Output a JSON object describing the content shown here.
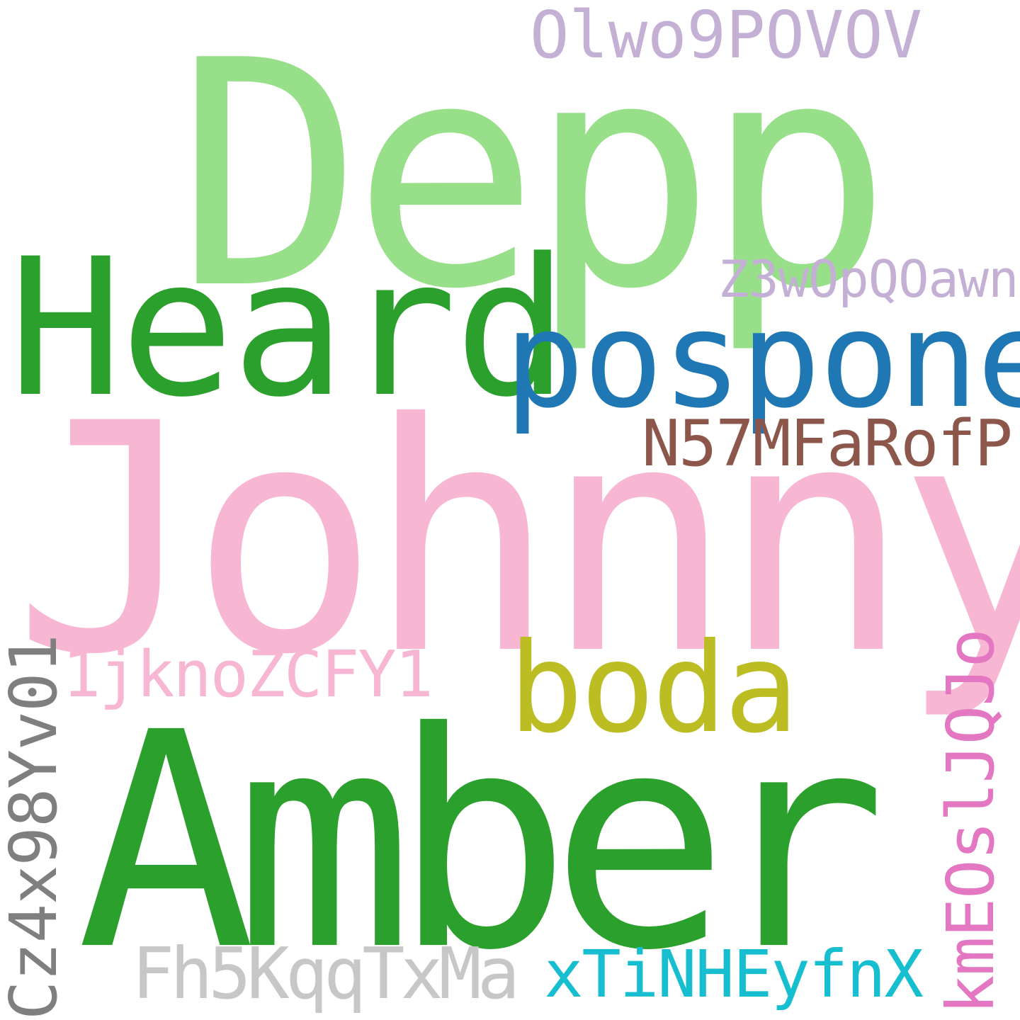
{
  "words": {
    "depp": {
      "text": "Depp",
      "color": "#98df8a"
    },
    "heard": {
      "text": "Heard",
      "color": "#2ca02c"
    },
    "posponen": {
      "text": "posponen",
      "color": "#1f77b4"
    },
    "olwo": {
      "text": "Olwo9POVOV",
      "color": "#c5b0d5"
    },
    "z3w": {
      "text": "Z3wOpQOawn",
      "color": "#c5b0d5"
    },
    "n57": {
      "text": "N57MFaRofP",
      "color": "#8c564b"
    },
    "johnny": {
      "text": "Johnny",
      "color": "#f7b6d2"
    },
    "1jk": {
      "text": "1jknoZCFY1",
      "color": "#f7b6d2"
    },
    "boda": {
      "text": "boda",
      "color": "#bcbd22"
    },
    "amber": {
      "text": "Amber",
      "color": "#2ca02c"
    },
    "fh5": {
      "text": "Fh5KqqTxMa",
      "color": "#c7c7c7"
    },
    "xti": {
      "text": "xTiNHEyfnX",
      "color": "#17becf"
    },
    "cz4": {
      "text": "Cz4x98Yv01",
      "color": "#7f7f7f"
    },
    "kme": {
      "text": "kmEOslJQJo",
      "color": "#e377c2"
    }
  }
}
